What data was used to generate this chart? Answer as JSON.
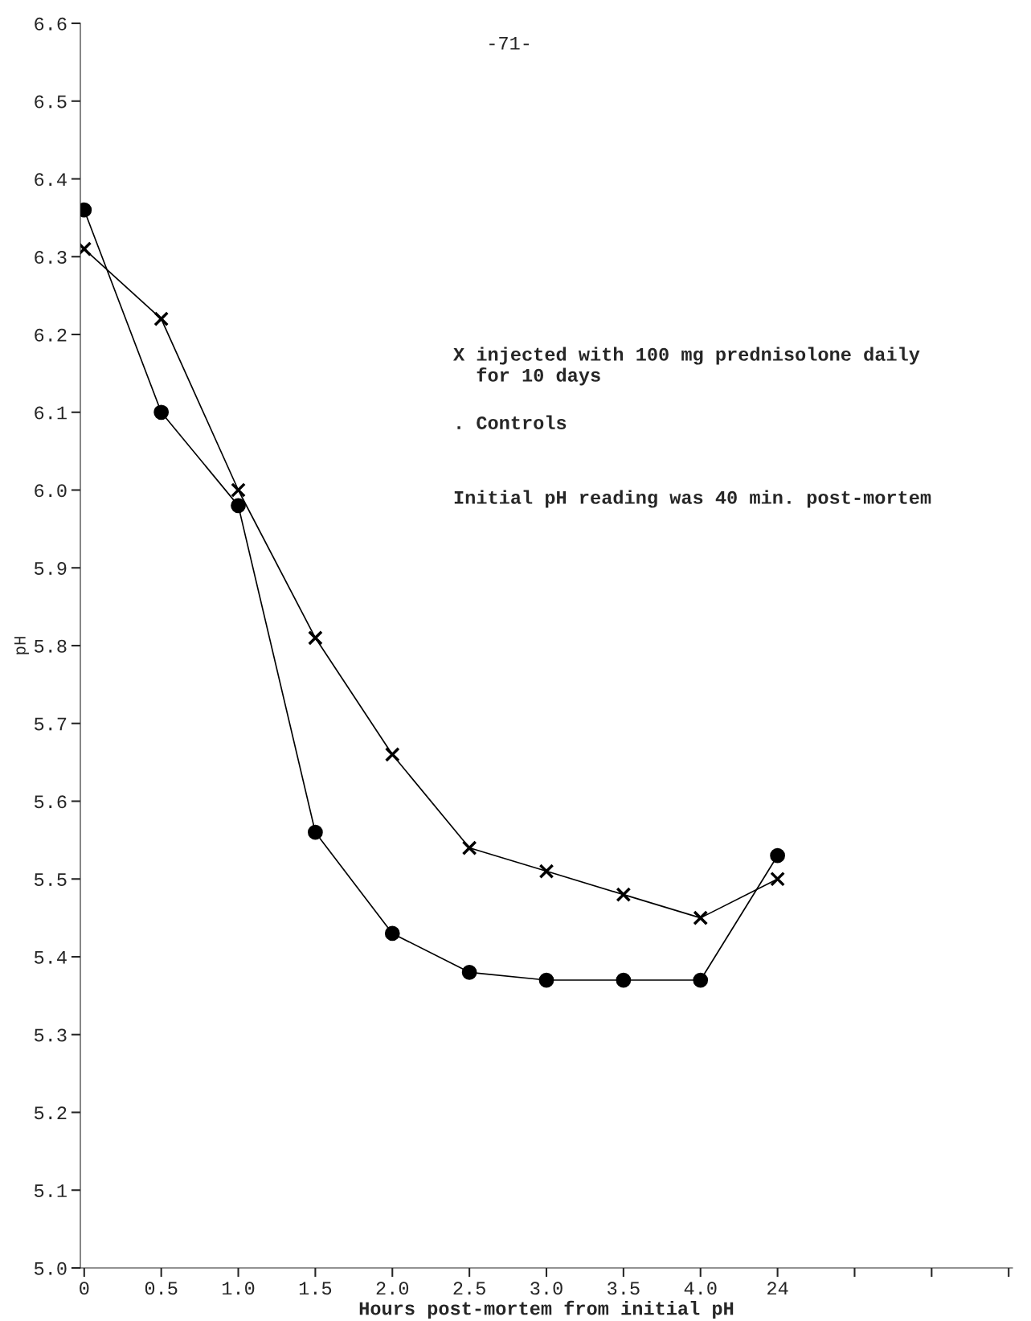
{
  "chart_data": {
    "type": "line",
    "xlabel": "Hours post-mortem from initial pH",
    "ylabel": "pH",
    "categories": [
      "0",
      "0.5",
      "1.0",
      "1.5",
      "2.0",
      "2.5",
      "3.0",
      "3.5",
      "4.0",
      "24",
      null,
      null,
      null
    ],
    "series": [
      {
        "color": "#000000",
        "marker": "cross",
        "values": [
          6.31,
          6.22,
          6.0,
          5.81,
          5.66,
          5.54,
          5.51,
          5.48,
          5.45,
          5.5,
          null,
          null,
          null
        ]
      },
      {
        "color": "#000000",
        "marker": "circle",
        "values": [
          6.36,
          6.1,
          5.98,
          5.56,
          5.43,
          5.38,
          5.37,
          5.37,
          5.37,
          5.53,
          null,
          null,
          null
        ]
      }
    ],
    "ylim": [
      5.0,
      6.6
    ],
    "yticks": [
      {
        "value": 5,
        "label": "5.0"
      },
      5.1,
      5.2,
      5.3,
      5.4,
      5.5,
      5.6,
      5.7,
      5.8,
      5.9,
      {
        "value": 6,
        "label": "6.0"
      },
      6.1,
      6.2,
      6.3,
      6.4,
      6.5,
      6.6
    ],
    "grid": false,
    "legend": false,
    "line_style": "solid",
    "annotations": [
      "-71-",
      "X injected with 100 mg prednisolone daily\n  for 10 days",
      ". Controls",
      "Initial pH reading was 40 min. post-mortem"
    ]
  }
}
